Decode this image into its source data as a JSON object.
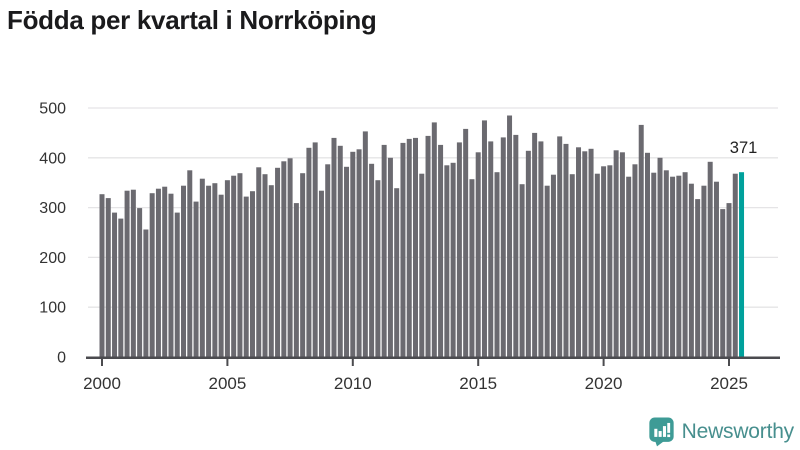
{
  "title": "Födda per kvartal i Norrköping",
  "footer": {
    "brand": "Newsworthy"
  },
  "colors": {
    "bar": "#6b6a70",
    "highlight": "#00a19c",
    "grid": "#e5e4e6",
    "axis": "#4b4b4f",
    "tick_text": "#333333",
    "title_text": "#1a1a1c",
    "annotation_text": "#222222",
    "brand_teal": "#3e9b96",
    "brand_text": "#478f8e",
    "background": "#ffffff"
  },
  "chart_data": {
    "type": "bar",
    "title": "Födda per kvartal i Norrköping",
    "x_unit": "quarter",
    "start_period": "2000-Q1",
    "end_period": "2025-Q3",
    "x_tick_labels": [
      "2000",
      "2005",
      "2010",
      "2015",
      "2020",
      "2025"
    ],
    "x_tick_indices": [
      0,
      20,
      40,
      60,
      80,
      100
    ],
    "y_ticks": [
      0,
      100,
      200,
      300,
      400,
      500
    ],
    "ylim": [
      0,
      500
    ],
    "grid": "horizontal",
    "legend": "none",
    "xlabel": "",
    "ylabel": "",
    "highlight_last": true,
    "highlight_label": "371",
    "values": [
      327,
      319,
      290,
      278,
      334,
      336,
      299,
      256,
      329,
      338,
      342,
      328,
      290,
      344,
      375,
      312,
      358,
      344,
      349,
      326,
      355,
      364,
      369,
      322,
      333,
      381,
      367,
      345,
      380,
      393,
      399,
      309,
      369,
      420,
      431,
      334,
      387,
      440,
      424,
      382,
      412,
      417,
      453,
      388,
      355,
      426,
      400,
      339,
      430,
      438,
      440,
      368,
      444,
      471,
      426,
      385,
      390,
      431,
      458,
      357,
      411,
      475,
      433,
      371,
      441,
      485,
      446,
      347,
      414,
      450,
      433,
      344,
      366,
      443,
      428,
      367,
      421,
      413,
      418,
      368,
      383,
      385,
      415,
      411,
      362,
      387,
      466,
      410,
      370,
      400,
      375,
      362,
      364,
      371,
      348,
      317,
      344,
      392,
      352,
      297,
      309,
      368,
      371
    ]
  }
}
